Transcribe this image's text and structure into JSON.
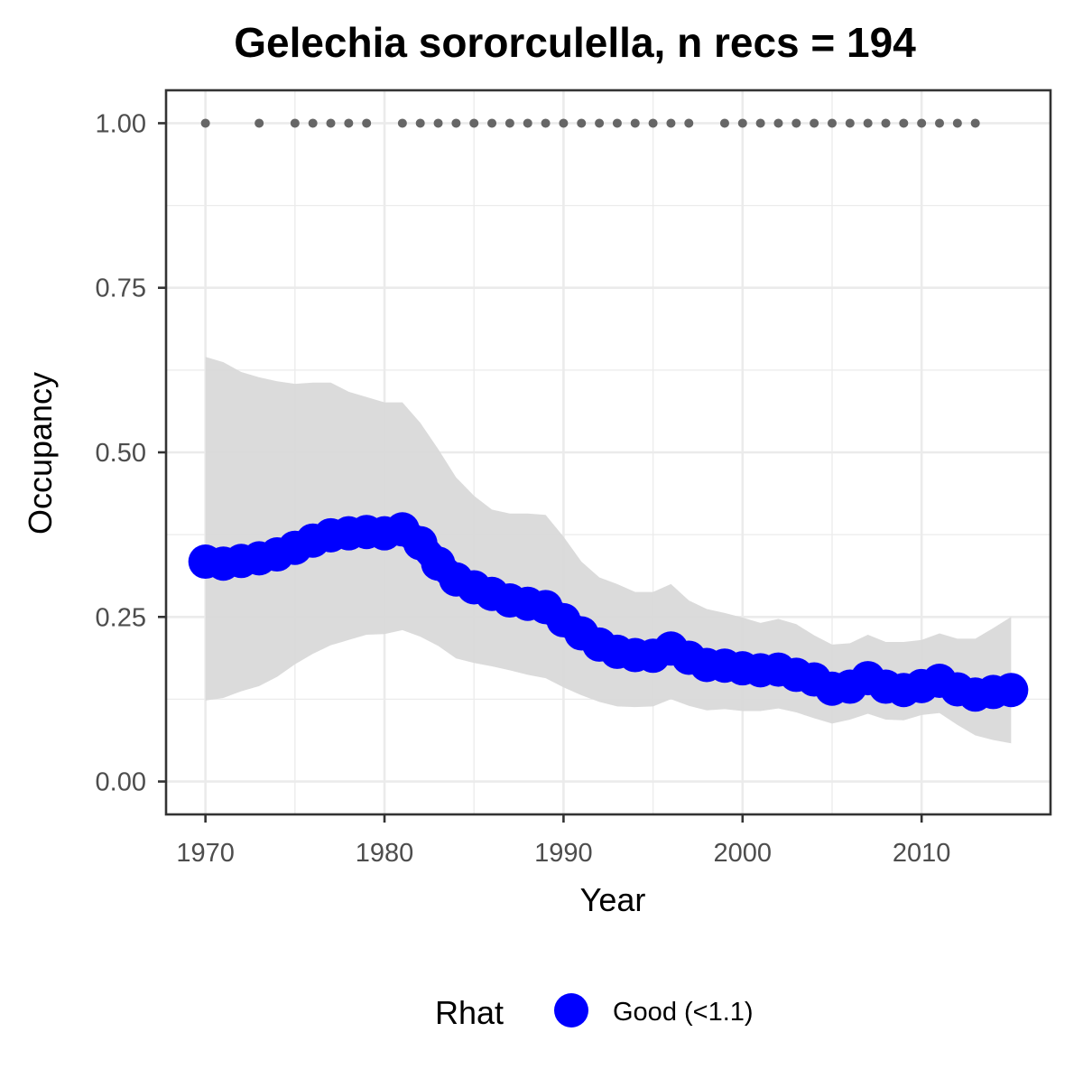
{
  "chart_data": {
    "type": "line",
    "title": "Gelechia sororculella, n recs = 194",
    "xlabel": "Year",
    "ylabel": "Occupancy",
    "xlim": [
      1967.8,
      2017.2
    ],
    "ylim": [
      -0.05,
      1.05
    ],
    "x_ticks": [
      1970,
      1980,
      1990,
      2000,
      2010
    ],
    "x_tick_labels": [
      "1970",
      "1980",
      "1990",
      "2000",
      "2010"
    ],
    "y_ticks": [
      0,
      0.25,
      0.5,
      0.75,
      1.0
    ],
    "y_tick_labels": [
      "0.00",
      "0.25",
      "0.50",
      "0.75",
      "1.00"
    ],
    "grid": true,
    "legend": {
      "title": "Rhat",
      "position": "bottom",
      "entries": [
        {
          "label": "Good (<1.1)",
          "color": "#0000ff"
        }
      ]
    },
    "colors": {
      "occupancy": "#0000ff",
      "ribbon": "#d9d9d9",
      "records": "#666666"
    },
    "years": [
      1970,
      1971,
      1972,
      1973,
      1974,
      1975,
      1976,
      1977,
      1978,
      1979,
      1980,
      1981,
      1982,
      1983,
      1984,
      1985,
      1986,
      1987,
      1988,
      1989,
      1990,
      1991,
      1992,
      1993,
      1994,
      1995,
      1996,
      1997,
      1998,
      1999,
      2000,
      2001,
      2002,
      2003,
      2004,
      2005,
      2006,
      2007,
      2008,
      2009,
      2010,
      2011,
      2012,
      2013,
      2014,
      2015
    ],
    "series": [
      {
        "name": "Good (<1.1)",
        "values": [
          0.334,
          0.331,
          0.335,
          0.339,
          0.345,
          0.355,
          0.366,
          0.374,
          0.377,
          0.379,
          0.377,
          0.383,
          0.362,
          0.331,
          0.307,
          0.295,
          0.285,
          0.275,
          0.27,
          0.265,
          0.245,
          0.225,
          0.208,
          0.197,
          0.192,
          0.191,
          0.202,
          0.188,
          0.177,
          0.176,
          0.172,
          0.169,
          0.17,
          0.162,
          0.155,
          0.141,
          0.144,
          0.157,
          0.144,
          0.139,
          0.145,
          0.153,
          0.14,
          0.132,
          0.136,
          0.139
        ]
      }
    ],
    "ci_lower": [
      0.123,
      0.127,
      0.137,
      0.145,
      0.159,
      0.178,
      0.194,
      0.207,
      0.215,
      0.223,
      0.224,
      0.23,
      0.22,
      0.206,
      0.187,
      0.18,
      0.175,
      0.169,
      0.162,
      0.157,
      0.143,
      0.131,
      0.121,
      0.114,
      0.113,
      0.114,
      0.125,
      0.115,
      0.108,
      0.11,
      0.107,
      0.107,
      0.111,
      0.105,
      0.096,
      0.088,
      0.094,
      0.103,
      0.094,
      0.093,
      0.101,
      0.104,
      0.086,
      0.07,
      0.063,
      0.058
    ],
    "ci_upper": [
      0.645,
      0.637,
      0.622,
      0.614,
      0.608,
      0.604,
      0.606,
      0.606,
      0.592,
      0.584,
      0.576,
      0.576,
      0.545,
      0.505,
      0.462,
      0.434,
      0.413,
      0.407,
      0.407,
      0.405,
      0.372,
      0.334,
      0.31,
      0.3,
      0.288,
      0.288,
      0.3,
      0.275,
      0.262,
      0.256,
      0.249,
      0.241,
      0.247,
      0.239,
      0.222,
      0.208,
      0.21,
      0.223,
      0.212,
      0.212,
      0.215,
      0.225,
      0.217,
      0.217,
      0.233,
      0.25
    ],
    "record_years": [
      1970,
      1973,
      1975,
      1976,
      1977,
      1978,
      1979,
      1981,
      1982,
      1983,
      1984,
      1985,
      1986,
      1987,
      1988,
      1989,
      1990,
      1991,
      1992,
      1993,
      1994,
      1995,
      1996,
      1997,
      1999,
      2000,
      2001,
      2002,
      2003,
      2004,
      2005,
      2006,
      2007,
      2008,
      2009,
      2010,
      2011,
      2012,
      2013
    ],
    "record_value": 1.0
  }
}
